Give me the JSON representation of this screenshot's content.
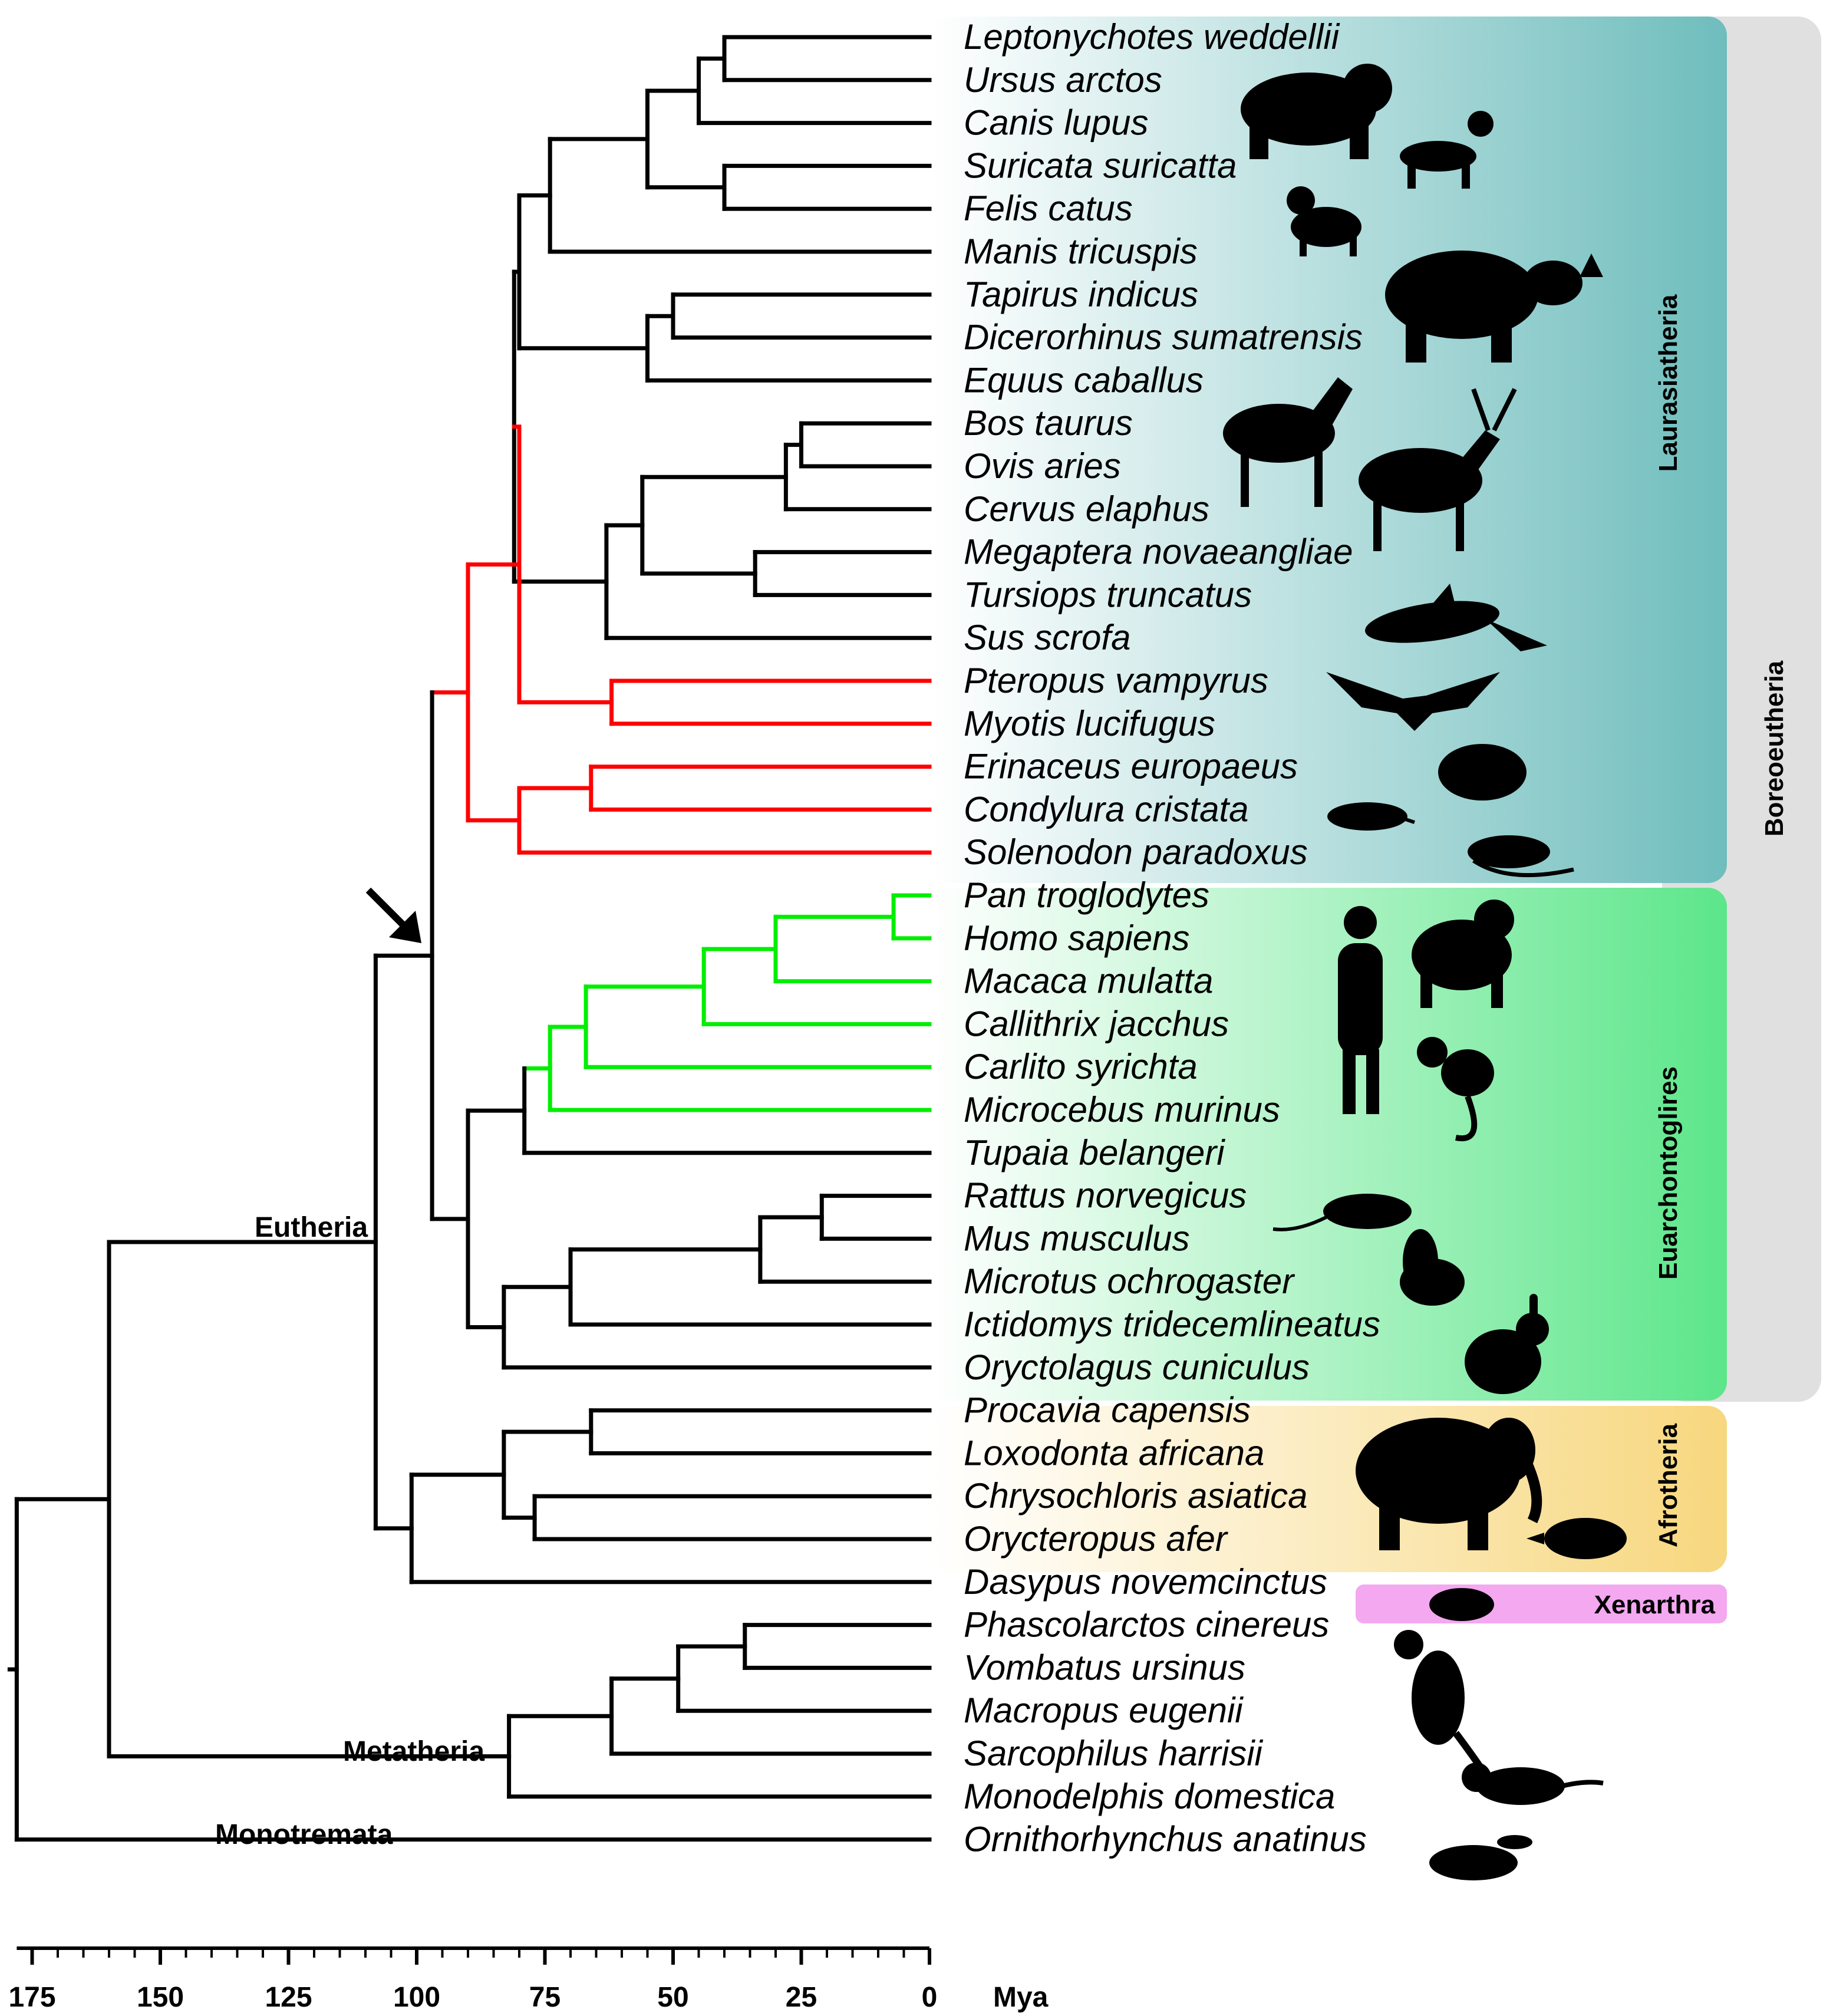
{
  "colors": {
    "branch": "#000000",
    "chiroptera_eulipotyphla": "#ff0000",
    "primates": "#00ee00",
    "laurasiatheria_bg": "#6fbdbd",
    "euarchontoglires_bg": "#5ce68a",
    "afrotheria_bg": "#f7d77e",
    "xenarthra_bg": "#f4a8f0",
    "boreoeutheria_bg": "#d8d8d8"
  },
  "taxa": [
    {
      "name": "Leptonychotes weddellii",
      "icon": "seal-icon"
    },
    {
      "name": "Ursus arctos",
      "icon": "bear-icon"
    },
    {
      "name": "Canis lupus",
      "icon": "dog-icon"
    },
    {
      "name": "Suricata suricatta",
      "icon": null
    },
    {
      "name": "Felis catus",
      "icon": "cat-icon"
    },
    {
      "name": "Manis tricuspis",
      "icon": null
    },
    {
      "name": "Tapirus indicus",
      "icon": "rhino-icon"
    },
    {
      "name": "Dicerorhinus sumatrensis",
      "icon": null
    },
    {
      "name": "Equus caballus",
      "icon": "horse-icon"
    },
    {
      "name": "Bos taurus",
      "icon": "deer-icon"
    },
    {
      "name": "Ovis aries",
      "icon": null
    },
    {
      "name": "Cervus elaphus",
      "icon": null
    },
    {
      "name": "Megaptera novaeangliae",
      "icon": null
    },
    {
      "name": "Tursiops truncatus",
      "icon": "dolphin-icon"
    },
    {
      "name": "Sus scrofa",
      "icon": null
    },
    {
      "name": "Pteropus vampyrus",
      "icon": "bat-icon"
    },
    {
      "name": "Myotis lucifugus",
      "icon": null
    },
    {
      "name": "Erinaceus europaeus",
      "icon": "hedgehog-icon"
    },
    {
      "name": "Condylura cristata",
      "icon": "mole-icon"
    },
    {
      "name": "Solenodon paradoxus",
      "icon": "solenodon-icon"
    },
    {
      "name": "Pan troglodytes",
      "icon": "chimpanzee-icon"
    },
    {
      "name": "Homo sapiens",
      "icon": "human-icon"
    },
    {
      "name": "Macaca mulatta",
      "icon": null
    },
    {
      "name": "Callithrix jacchus",
      "icon": null
    },
    {
      "name": "Carlito syrichta",
      "icon": "tarsier-icon"
    },
    {
      "name": "Microcebus murinus",
      "icon": null
    },
    {
      "name": "Tupaia belangeri",
      "icon": null
    },
    {
      "name": "Rattus norvegicus",
      "icon": "rat-icon"
    },
    {
      "name": "Mus musculus",
      "icon": null
    },
    {
      "name": "Microtus ochrogaster",
      "icon": "squirrel-icon"
    },
    {
      "name": "Ictidomys tridecemlineatus",
      "icon": null
    },
    {
      "name": "Oryctolagus cuniculus",
      "icon": "rabbit-icon"
    },
    {
      "name": "Procavia capensis",
      "icon": "elephant-icon"
    },
    {
      "name": "Loxodonta africana",
      "icon": null
    },
    {
      "name": "Chrysochloris asiatica",
      "icon": "aardvark-icon"
    },
    {
      "name": "Orycteropus afer",
      "icon": null
    },
    {
      "name": "Dasypus novemcinctus",
      "icon": "armadillo-icon"
    },
    {
      "name": "Phascolarctos cinereus",
      "icon": "kangaroo-icon"
    },
    {
      "name": "Vombatus ursinus",
      "icon": null
    },
    {
      "name": "Macropus eugenii",
      "icon": null
    },
    {
      "name": "Sarcophilus harrisii",
      "icon": "tasmanian-devil-icon"
    },
    {
      "name": "Monodelphis domestica",
      "icon": null
    },
    {
      "name": "Ornithorhynchus anatinus",
      "icon": "platypus-icon"
    }
  ],
  "node_labels": {
    "eutheria": "Eutheria",
    "metatheria": "Metatheria",
    "monotremata": "Monotremata"
  },
  "clades": {
    "laurasiatheria": "Laurasiatheria",
    "euarchontoglires": "Euarchontoglires",
    "afrotheria": "Afrotheria",
    "xenarthra": "Xenarthra",
    "boreoeutheria": "Boreoeutheria"
  },
  "axis": {
    "ticks": [
      175,
      150,
      125,
      100,
      75,
      50,
      25,
      0
    ],
    "unit": "Mya",
    "range": [
      178,
      0
    ]
  },
  "annotations": {
    "arrow_icon": "arrow-icon"
  }
}
